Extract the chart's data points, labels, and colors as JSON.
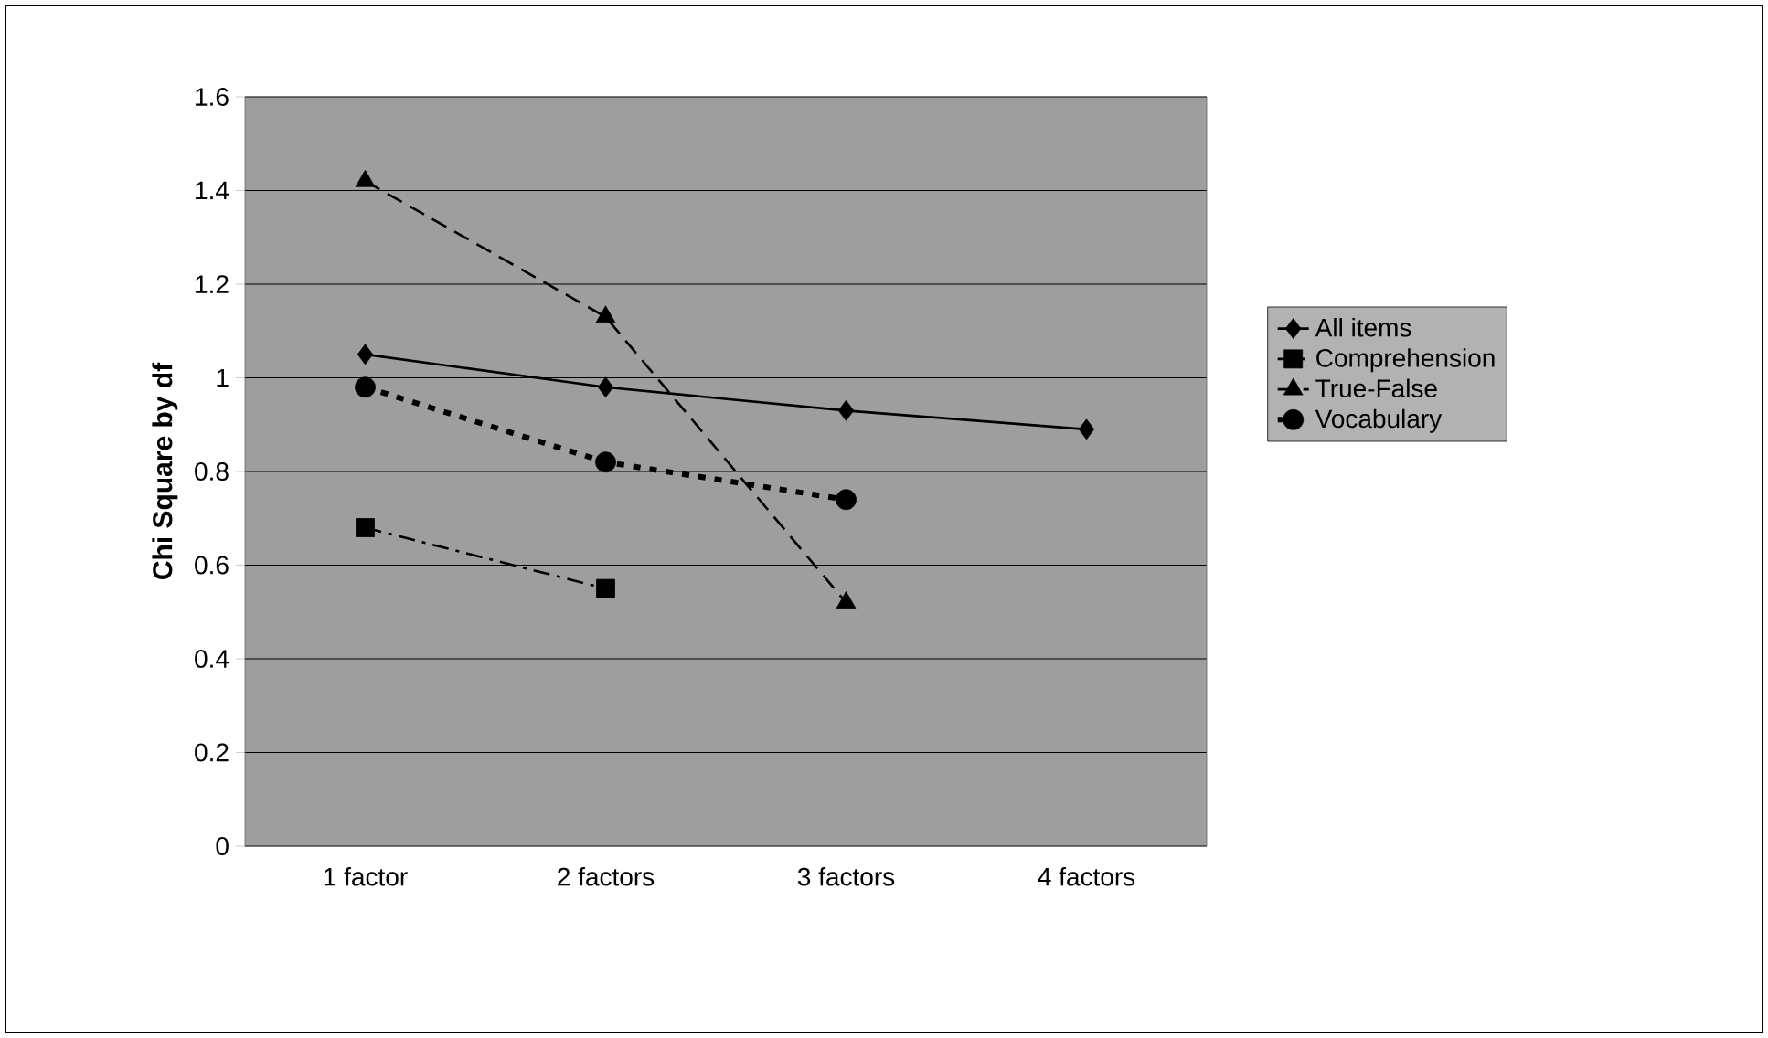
{
  "chart_data": {
    "type": "line",
    "ylabel": "Chi Square by df",
    "categories": [
      "1 factor",
      "2 factors",
      "3 factors",
      "4 factors"
    ],
    "series": [
      {
        "name": "All items",
        "color": "#000000",
        "values": [
          1.05,
          0.98,
          0.93,
          0.89
        ],
        "marker": "diamond",
        "line_style": "solid"
      },
      {
        "name": "Comprehension",
        "color": "#000000",
        "values": [
          0.68,
          0.55,
          null,
          null
        ],
        "marker": "square",
        "line_style": "dashdot"
      },
      {
        "name": "True-False",
        "color": "#000000",
        "values": [
          1.42,
          1.13,
          0.52,
          null
        ],
        "marker": "triangle",
        "line_style": "dashed"
      },
      {
        "name": "Vocabulary",
        "color": "#000000",
        "values": [
          0.98,
          0.82,
          0.74,
          null
        ],
        "marker": "circle",
        "line_style": "dotted"
      }
    ],
    "ylim": [
      0,
      1.6
    ],
    "yticks": [
      0,
      0.2,
      0.4,
      0.6,
      0.8,
      1,
      1.2,
      1.4,
      1.6
    ],
    "grid": "y",
    "legend": "right"
  }
}
